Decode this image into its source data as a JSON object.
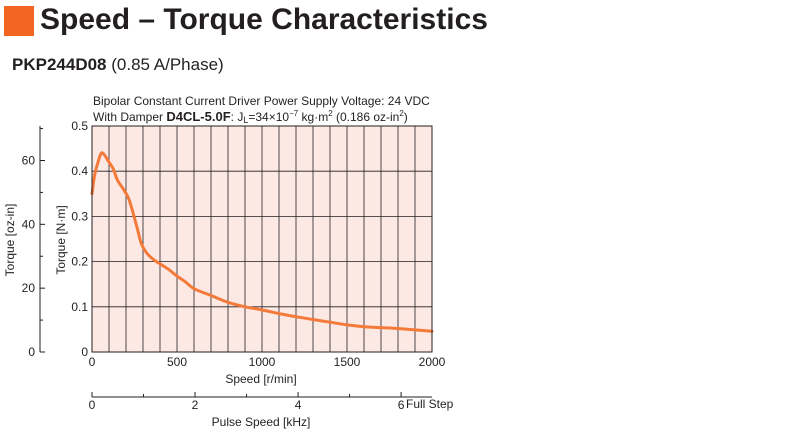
{
  "header": {
    "title": "Speed – Torque Characteristics",
    "model": "PKP244D08",
    "current": "(0.85 A/Phase)"
  },
  "colors": {
    "accent": "#f26522",
    "plot_background": "#fde9e4",
    "curve": "#f47a3a",
    "grid": "#231f20"
  },
  "conditions": {
    "line1": "Bipolar Constant Current Driver  Power Supply Voltage: 24 VDC",
    "line2_prefix": "With Damper ",
    "damper_model": "D4CL-5.0F",
    "inertia_prefix": ": J",
    "inertia_sub": "L",
    "inertia_value": "=34×10",
    "inertia_exp": "−7",
    "inertia_unit": " kg·m",
    "inertia_unit_exp": "2",
    "inertia_alt": " (0.186 oz-in",
    "inertia_alt_exp": "2",
    "inertia_alt_close": ")"
  },
  "chart_data": {
    "type": "line",
    "x_label": "Speed [r/min]",
    "y_label": "Torque [N·m]",
    "y2_label": "Torque [oz-in]",
    "x2_label": "Pulse Speed [kHz]",
    "x2_suffix": "Full Step",
    "xlim": [
      0,
      2000
    ],
    "ylim": [
      0,
      0.5
    ],
    "x_ticks": [
      "0",
      "500",
      "1000",
      "1500",
      "2000"
    ],
    "y_ticks": [
      "0",
      "0.1",
      "0.2",
      "0.3",
      "0.4",
      "0.5"
    ],
    "y2_ticks": [
      "0",
      "20",
      "40",
      "60"
    ],
    "x2_ticks": [
      "0",
      "2",
      "4",
      "6"
    ],
    "grid": true,
    "series": [
      {
        "x": [
          0,
          15,
          35,
          55,
          75,
          100,
          125,
          150,
          185,
          215,
          240,
          265,
          290,
          320,
          360,
          400,
          450,
          500,
          550,
          600,
          700,
          800,
          900,
          1000,
          1100,
          1200,
          1300,
          1400,
          1500,
          1600,
          1700,
          1800,
          1900,
          2000
        ],
        "y": [
          0.35,
          0.39,
          0.42,
          0.44,
          0.435,
          0.42,
          0.405,
          0.38,
          0.36,
          0.34,
          0.31,
          0.275,
          0.24,
          0.22,
          0.205,
          0.195,
          0.183,
          0.168,
          0.155,
          0.14,
          0.125,
          0.11,
          0.1,
          0.093,
          0.085,
          0.078,
          0.072,
          0.066,
          0.06,
          0.056,
          0.054,
          0.052,
          0.049,
          0.046
        ]
      }
    ]
  }
}
